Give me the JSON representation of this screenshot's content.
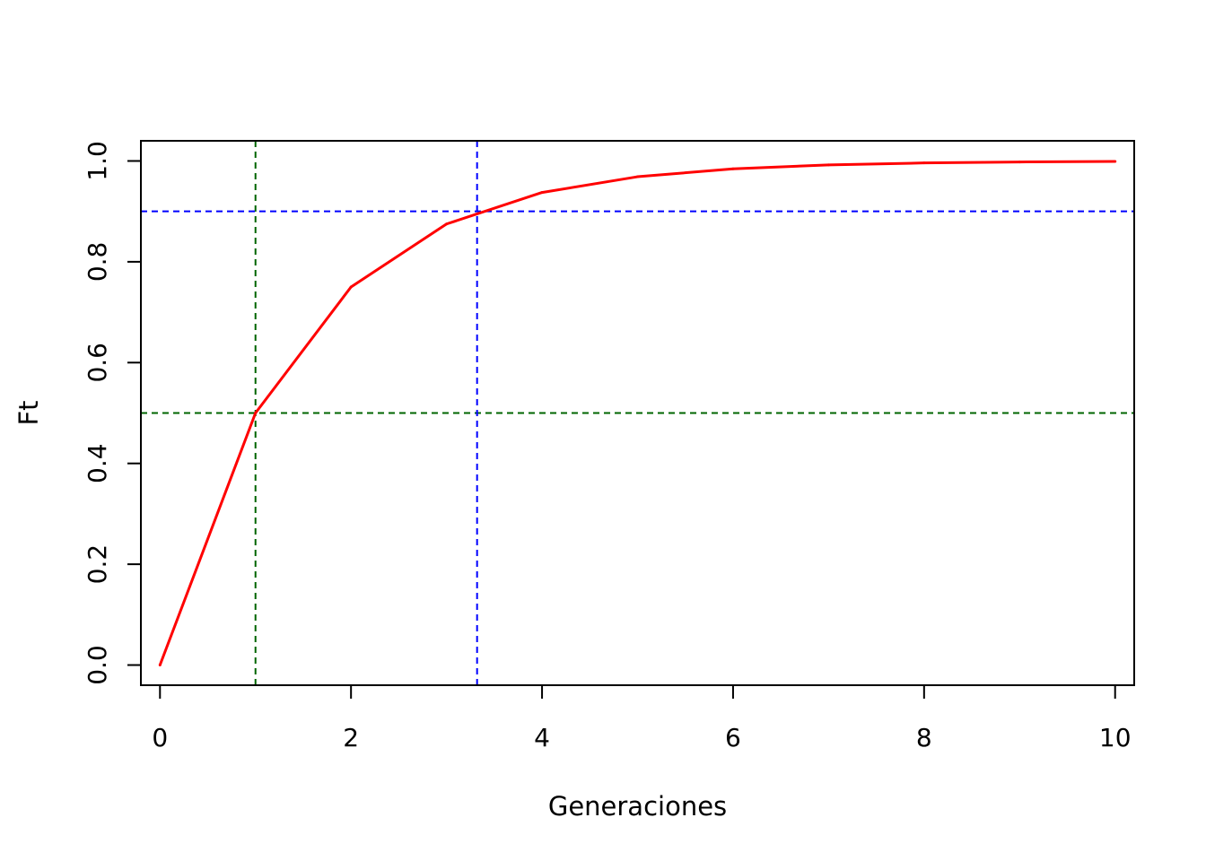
{
  "chart_data": {
    "type": "line",
    "title": "",
    "xlabel": "Generaciones",
    "ylabel": "Ft",
    "xlim": [
      -0.2,
      10.2
    ],
    "ylim": [
      -0.04,
      1.04
    ],
    "x_ticks": [
      0,
      2,
      4,
      6,
      8,
      10
    ],
    "x_tick_labels": [
      "0",
      "2",
      "4",
      "6",
      "8",
      "10"
    ],
    "y_ticks": [
      0,
      0.2,
      0.4,
      0.6,
      0.8,
      1.0
    ],
    "y_tick_labels": [
      "0.0",
      "0.2",
      "0.4",
      "0.6",
      "0.8",
      "1.0"
    ],
    "grid": false,
    "series": [
      {
        "color": "#ff0000",
        "x": [
          0,
          1,
          2,
          3,
          4,
          5,
          6,
          7,
          8,
          9,
          10
        ],
        "y": [
          0,
          0.5,
          0.75,
          0.875,
          0.9375,
          0.96875,
          0.984375,
          0.9921875,
          0.99609375,
          0.998046875,
          0.9990234375
        ]
      }
    ],
    "reference_lines": [
      {
        "orientation": "horizontal",
        "value": 0.5,
        "color": "#006400",
        "style": "dashed"
      },
      {
        "orientation": "vertical",
        "value": 1,
        "color": "#006400",
        "style": "dashed"
      },
      {
        "orientation": "horizontal",
        "value": 0.9,
        "color": "#0000ff",
        "style": "dashed"
      },
      {
        "orientation": "vertical",
        "value": 3.32,
        "color": "#0000ff",
        "style": "dashed"
      }
    ]
  }
}
